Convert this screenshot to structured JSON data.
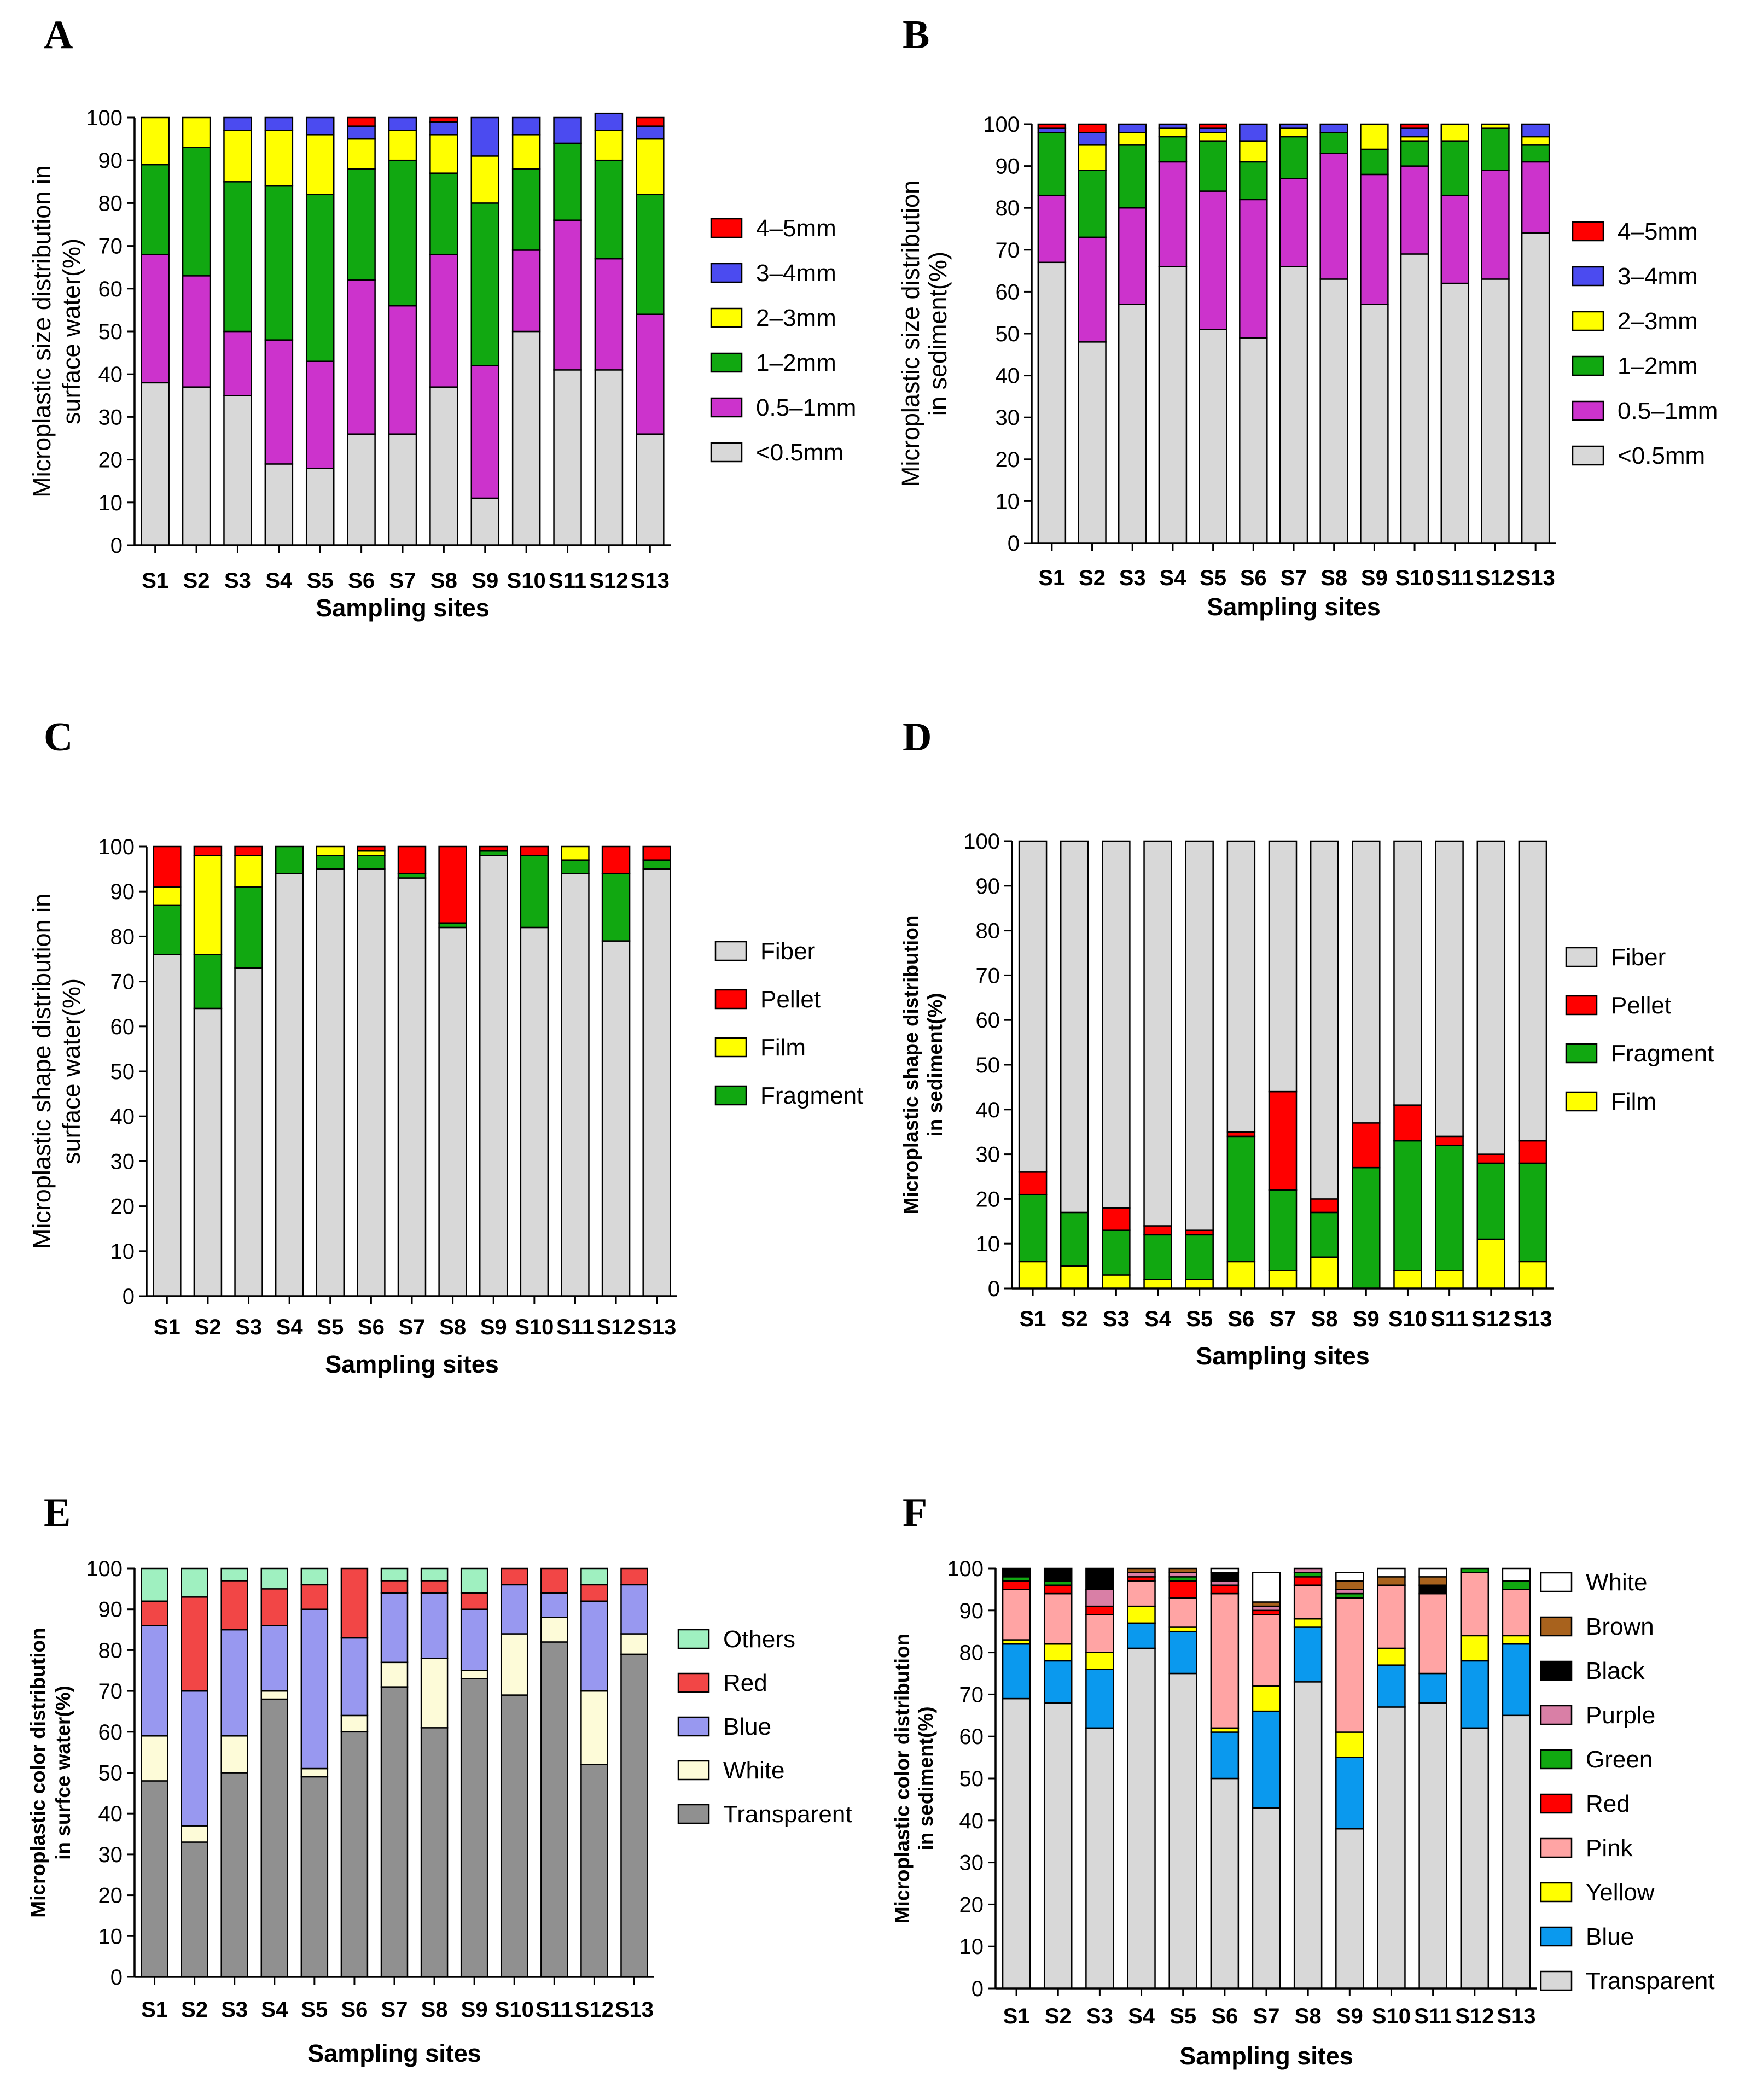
{
  "colors": {
    "lt05": "#d8d8d8",
    "s05_1": "#cc33cc",
    "s1_2": "#11a811",
    "s2_3": "#ffff00",
    "s3_4": "#4b4bf0",
    "s4_5": "#ff0000",
    "fiber": "#d8d8d8",
    "pellet": "#ff0000",
    "film": "#ffff00",
    "fragment": "#11a811",
    "transparent_e": "#909090",
    "white_e": "#fdfbd8",
    "blue_e": "#9898f0",
    "red_e": "#f24646",
    "others_e": "#9ff0c0",
    "transparent_f": "#d8d8d8",
    "blue_f": "#0a99ee",
    "yellow_f": "#ffff00",
    "pink_f": "#ffa4a4",
    "red_f": "#ff0000",
    "green_f": "#11a811",
    "purple_f": "#d97fa6",
    "black_f": "#000000",
    "brown_f": "#a8621d",
    "white_f": "#ffffff"
  },
  "chart_data": [
    {
      "panel": "A",
      "type": "bar",
      "stacked": true,
      "title": "",
      "categories": [
        "S1",
        "S2",
        "S3",
        "S4",
        "S5",
        "S6",
        "S7",
        "S8",
        "S9",
        "S10",
        "S11",
        "S12",
        "S13"
      ],
      "xlabel": "Sampling sites",
      "ylabel": "Microplastic size distribution in surface water(%)",
      "ylabel_lines": [
        "Microplastic size distribution in",
        "surface water(%)"
      ],
      "ylim": [
        0,
        100
      ],
      "yticks": [
        0,
        10,
        20,
        30,
        40,
        50,
        60,
        70,
        80,
        90,
        100
      ],
      "legend_position": "right",
      "series": [
        {
          "name": "<0.5mm",
          "color_key": "lt05",
          "values": [
            38,
            37,
            35,
            19,
            18,
            26,
            26,
            37,
            11,
            50,
            41,
            41,
            26
          ]
        },
        {
          "name": "0.5–1mm",
          "color_key": "s05_1",
          "values": [
            30,
            26,
            15,
            29,
            25,
            36,
            30,
            31,
            31,
            19,
            35,
            26,
            28
          ]
        },
        {
          "name": "1–2mm",
          "color_key": "s1_2",
          "values": [
            21,
            30,
            35,
            36,
            39,
            26,
            34,
            19,
            38,
            19,
            18,
            23,
            28
          ]
        },
        {
          "name": "2–3mm",
          "color_key": "s2_3",
          "values": [
            11,
            7,
            12,
            13,
            14,
            7,
            7,
            9,
            11,
            8,
            0,
            7,
            13
          ]
        },
        {
          "name": "3–4mm",
          "color_key": "s3_4",
          "values": [
            0,
            0,
            3,
            3,
            4,
            3,
            3,
            3,
            9,
            4,
            6,
            4,
            3
          ]
        },
        {
          "name": "4–5mm",
          "color_key": "s4_5",
          "values": [
            0,
            0,
            0,
            0,
            0,
            2,
            0,
            1,
            0,
            0,
            0,
            0,
            2
          ]
        }
      ]
    },
    {
      "panel": "B",
      "type": "bar",
      "stacked": true,
      "title": "",
      "categories": [
        "S1",
        "S2",
        "S3",
        "S4",
        "S5",
        "S6",
        "S7",
        "S8",
        "S9",
        "S10",
        "S11",
        "S12",
        "S13"
      ],
      "xlabel": "Sampling sites",
      "ylabel": "Microplastic size distribution in sediment(%)",
      "ylabel_lines": [
        "Microplastic size distribution",
        "in sediment(%)"
      ],
      "ylim": [
        0,
        100
      ],
      "yticks": [
        0,
        10,
        20,
        30,
        40,
        50,
        60,
        70,
        80,
        90,
        100
      ],
      "legend_position": "right",
      "series": [
        {
          "name": "<0.5mm",
          "color_key": "lt05",
          "values": [
            67,
            48,
            57,
            66,
            51,
            49,
            66,
            63,
            57,
            69,
            62,
            63,
            74
          ]
        },
        {
          "name": "0.5–1mm",
          "color_key": "s05_1",
          "values": [
            16,
            25,
            23,
            25,
            33,
            33,
            21,
            30,
            31,
            21,
            21,
            26,
            17
          ]
        },
        {
          "name": "1–2mm",
          "color_key": "s1_2",
          "values": [
            15,
            16,
            15,
            6,
            12,
            9,
            10,
            5,
            6,
            6,
            13,
            10,
            4
          ]
        },
        {
          "name": "2–3mm",
          "color_key": "s2_3",
          "values": [
            0,
            6,
            3,
            2,
            2,
            5,
            2,
            0,
            6,
            1,
            4,
            1,
            2
          ]
        },
        {
          "name": "3–4mm",
          "color_key": "s3_4",
          "values": [
            1,
            3,
            2,
            1,
            1,
            4,
            1,
            2,
            0,
            2,
            0,
            0,
            3
          ]
        },
        {
          "name": "4–5mm",
          "color_key": "s4_5",
          "values": [
            1,
            2,
            0,
            0,
            1,
            0,
            0,
            0,
            0,
            1,
            0,
            0,
            0
          ]
        }
      ]
    },
    {
      "panel": "C",
      "type": "bar",
      "stacked": true,
      "title": "",
      "categories": [
        "S1",
        "S2",
        "S3",
        "S4",
        "S5",
        "S6",
        "S7",
        "S8",
        "S9",
        "S10",
        "S11",
        "S12",
        "S13"
      ],
      "xlabel": "Sampling sites",
      "ylabel": "Microplastic shape distribution in surface water(%)",
      "ylabel_lines": [
        "Microplastic shape distribution in",
        "surface water(%)"
      ],
      "ylim": [
        0,
        100
      ],
      "yticks": [
        0,
        10,
        20,
        30,
        40,
        50,
        60,
        70,
        80,
        90,
        100
      ],
      "legend_position": "right",
      "series": [
        {
          "name": "Fiber",
          "color_key": "fiber",
          "values": [
            76,
            64,
            73,
            94,
            95,
            95,
            93,
            82,
            98,
            82,
            94,
            79,
            95
          ]
        },
        {
          "name": "Fragment",
          "color_key": "fragment",
          "values": [
            11,
            12,
            18,
            6,
            3,
            3,
            1,
            1,
            1,
            16,
            3,
            15,
            2
          ]
        },
        {
          "name": "Film",
          "color_key": "film",
          "values": [
            4,
            22,
            7,
            0,
            2,
            1,
            0,
            0,
            0,
            0,
            3,
            0,
            0
          ]
        },
        {
          "name": "Pellet",
          "color_key": "pellet",
          "values": [
            9,
            2,
            2,
            0,
            0,
            1,
            6,
            17,
            1,
            2,
            0,
            6,
            3
          ]
        }
      ],
      "legend_order": [
        "Fiber",
        "Pellet",
        "Film",
        "Fragment"
      ]
    },
    {
      "panel": "D",
      "type": "bar",
      "stacked": true,
      "title": "",
      "categories": [
        "S1",
        "S2",
        "S3",
        "S4",
        "S5",
        "S6",
        "S7",
        "S8",
        "S9",
        "S10",
        "S11",
        "S12",
        "S13"
      ],
      "xlabel": "Sampling sites",
      "ylabel": "Microplastic shape distribution in sediment(%)",
      "ylabel_lines": [
        "Microplastic shape distribution",
        "in sediment(%)"
      ],
      "ylim": [
        0,
        100
      ],
      "yticks": [
        0,
        10,
        20,
        30,
        40,
        50,
        60,
        70,
        80,
        90,
        100
      ],
      "legend_position": "right",
      "series": [
        {
          "name": "Film",
          "color_key": "film",
          "values": [
            6,
            5,
            3,
            2,
            2,
            6,
            4,
            7,
            0,
            4,
            4,
            11,
            6
          ]
        },
        {
          "name": "Fragment",
          "color_key": "fragment",
          "values": [
            15,
            12,
            10,
            10,
            10,
            28,
            18,
            10,
            27,
            29,
            28,
            17,
            22
          ]
        },
        {
          "name": "Pellet",
          "color_key": "pellet",
          "values": [
            5,
            0,
            5,
            2,
            1,
            1,
            22,
            3,
            10,
            8,
            2,
            2,
            5
          ]
        },
        {
          "name": "Fiber",
          "color_key": "fiber",
          "values": [
            74,
            83,
            82,
            86,
            87,
            65,
            56,
            80,
            63,
            59,
            66,
            70,
            67
          ]
        }
      ],
      "legend_order": [
        "Fiber",
        "Pellet",
        "Fragment",
        "Film"
      ]
    },
    {
      "panel": "E",
      "type": "bar",
      "stacked": true,
      "title": "",
      "categories": [
        "S1",
        "S2",
        "S3",
        "S4",
        "S5",
        "S6",
        "S7",
        "S8",
        "S9",
        "S10",
        "S11",
        "S12",
        "S13"
      ],
      "xlabel": "Sampling sites",
      "ylabel": "Microplastic color distribution in surfce water(%)",
      "ylabel_lines": [
        "Microplastic color distribution",
        "in surfce water(%)"
      ],
      "ylim": [
        0,
        100
      ],
      "yticks": [
        0,
        10,
        20,
        30,
        40,
        50,
        60,
        70,
        80,
        90,
        100
      ],
      "legend_position": "right",
      "series": [
        {
          "name": "Transparent",
          "color_key": "transparent_e",
          "values": [
            48,
            33,
            50,
            68,
            49,
            60,
            71,
            61,
            73,
            69,
            82,
            52,
            79
          ]
        },
        {
          "name": "White",
          "color_key": "white_e",
          "values": [
            11,
            4,
            9,
            2,
            2,
            4,
            6,
            17,
            2,
            15,
            6,
            18,
            5
          ]
        },
        {
          "name": "Blue",
          "color_key": "blue_e",
          "values": [
            27,
            33,
            26,
            16,
            39,
            19,
            17,
            16,
            15,
            12,
            6,
            22,
            12
          ]
        },
        {
          "name": "Red",
          "color_key": "red_e",
          "values": [
            6,
            23,
            12,
            9,
            6,
            17,
            3,
            3,
            4,
            4,
            6,
            4,
            4
          ]
        },
        {
          "name": "Others",
          "color_key": "others_e",
          "values": [
            8,
            7,
            3,
            5,
            4,
            0,
            3,
            3,
            6,
            0,
            0,
            4,
            0
          ]
        }
      ]
    },
    {
      "panel": "F",
      "type": "bar",
      "stacked": true,
      "title": "",
      "categories": [
        "S1",
        "S2",
        "S3",
        "S4",
        "S5",
        "S6",
        "S7",
        "S8",
        "S9",
        "S10",
        "S11",
        "S12",
        "S13"
      ],
      "xlabel": "Sampling sites",
      "ylabel": "Microplastic color distribution in sediment(%)",
      "ylabel_lines": [
        "Microplastic color distribution",
        "in sediment(%)"
      ],
      "ylim": [
        0,
        100
      ],
      "yticks": [
        0,
        10,
        20,
        30,
        40,
        50,
        60,
        70,
        80,
        90,
        100
      ],
      "legend_position": "right",
      "series": [
        {
          "name": "Transparent",
          "color_key": "transparent_f",
          "values": [
            69,
            68,
            62,
            81,
            75,
            50,
            43,
            73,
            38,
            67,
            68,
            62,
            65
          ]
        },
        {
          "name": "Blue",
          "color_key": "blue_f",
          "values": [
            13,
            10,
            14,
            6,
            10,
            11,
            23,
            13,
            17,
            10,
            7,
            16,
            17
          ]
        },
        {
          "name": "Yellow",
          "color_key": "yellow_f",
          "values": [
            1,
            4,
            4,
            4,
            1,
            1,
            6,
            2,
            6,
            4,
            0,
            6,
            2
          ]
        },
        {
          "name": "Pink",
          "color_key": "pink_f",
          "values": [
            12,
            12,
            9,
            6,
            7,
            32,
            17,
            8,
            32,
            15,
            19,
            15,
            11
          ]
        },
        {
          "name": "Red",
          "color_key": "red_f",
          "values": [
            2,
            2,
            2,
            1,
            4,
            2,
            1,
            2,
            0,
            0,
            0,
            0,
            0
          ]
        },
        {
          "name": "Green",
          "color_key": "green_f",
          "values": [
            1,
            1,
            0,
            0,
            1,
            0,
            0,
            1,
            1,
            0,
            0,
            1,
            2
          ]
        },
        {
          "name": "Purple",
          "color_key": "purple_f",
          "values": [
            0,
            0,
            4,
            1,
            1,
            1,
            1,
            1,
            1,
            0,
            0,
            0,
            0
          ]
        },
        {
          "name": "Black",
          "color_key": "black_f",
          "values": [
            2,
            3,
            5,
            0,
            0,
            2,
            0,
            0,
            0,
            0,
            2,
            0,
            0
          ]
        },
        {
          "name": "Brown",
          "color_key": "brown_f",
          "values": [
            0,
            0,
            0,
            1,
            1,
            0,
            1,
            0,
            2,
            2,
            2,
            0,
            0
          ]
        },
        {
          "name": "White",
          "color_key": "white_f",
          "values": [
            0,
            0,
            0,
            0,
            0,
            1,
            7,
            0,
            2,
            2,
            2,
            0,
            3
          ]
        }
      ],
      "legend_order": [
        "White",
        "Brown",
        "Black",
        "Purple",
        "Green",
        "Red",
        "Pink",
        "Yellow",
        "Blue",
        "Transparent"
      ]
    }
  ]
}
